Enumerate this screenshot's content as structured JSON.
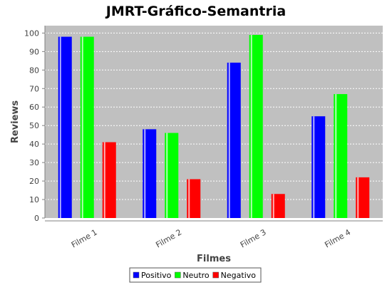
{
  "chart_data": {
    "type": "bar",
    "title": "JMRT-Gráfico-Semantria",
    "xlabel": "Filmes",
    "ylabel": "Reviews",
    "categories": [
      "Filme 1",
      "Filme 2",
      "Filme 3",
      "Filme 4"
    ],
    "series": [
      {
        "name": "Positivo",
        "color": "#0000ff",
        "values": [
          98,
          48,
          84,
          55
        ]
      },
      {
        "name": "Neutro",
        "color": "#00ff00",
        "values": [
          98,
          46,
          99,
          67
        ]
      },
      {
        "name": "Negativo",
        "color": "#ff0000",
        "values": [
          41,
          21,
          13,
          22
        ]
      }
    ],
    "ylim": [
      0,
      104
    ],
    "yticks": [
      0,
      10,
      20,
      30,
      40,
      50,
      60,
      70,
      80,
      90,
      100
    ],
    "grid": true,
    "legend": "bottom-center",
    "plot_background": "#c0c0c0"
  }
}
